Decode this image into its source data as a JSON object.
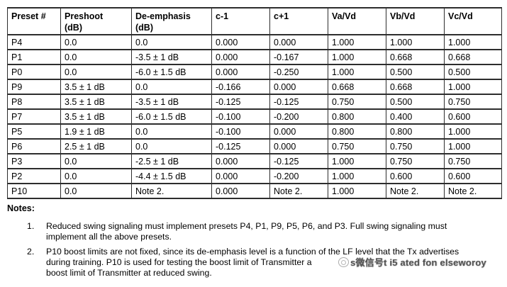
{
  "colors": {
    "background": "#ffffff",
    "border": "#2d2d2d",
    "text": "#000000",
    "watermark": "#3a3a3a"
  },
  "table": {
    "headers": [
      {
        "lines": [
          "Preset #"
        ]
      },
      {
        "lines": [
          "Preshoot",
          "(dB)"
        ]
      },
      {
        "lines": [
          "De-emphasis",
          "(dB)"
        ]
      },
      {
        "lines": [
          "c-1"
        ]
      },
      {
        "lines": [
          "c+1"
        ]
      },
      {
        "lines": [
          "Va/Vd"
        ]
      },
      {
        "lines": [
          "Vb/Vd"
        ]
      },
      {
        "lines": [
          "Vc/Vd"
        ]
      }
    ],
    "rows": [
      [
        "P4",
        "0.0",
        "0.0",
        "0.000",
        "0.000",
        "1.000",
        "1.000",
        "1.000"
      ],
      [
        "P1",
        "0.0",
        "-3.5 ± 1 dB",
        "0.000",
        "-0.167",
        "1.000",
        "0.668",
        "0.668"
      ],
      [
        "P0",
        "0.0",
        "-6.0 ± 1.5 dB",
        "0.000",
        "-0.250",
        "1.000",
        "0.500",
        "0.500"
      ],
      [
        "P9",
        "3.5 ± 1 dB",
        "0.0",
        "-0.166",
        "0.000",
        "0.668",
        "0.668",
        "1.000"
      ],
      [
        "P8",
        "3.5 ± 1 dB",
        "-3.5 ± 1 dB",
        "-0.125",
        "-0.125",
        "0.750",
        "0.500",
        "0.750"
      ],
      [
        "P7",
        "3.5 ± 1 dB",
        "-6.0 ± 1.5 dB",
        "-0.100",
        "-0.200",
        "0.800",
        "0.400",
        "0.600"
      ],
      [
        "P5",
        "1.9 ± 1 dB",
        "0.0",
        "-0.100",
        "0.000",
        "0.800",
        "0.800",
        "1.000"
      ],
      [
        "P6",
        "2.5 ± 1 dB",
        "0.0",
        "-0.125",
        "0.000",
        "0.750",
        "0.750",
        "1.000"
      ],
      [
        "P3",
        "0.0",
        "-2.5 ± 1 dB",
        "0.000",
        "-0.125",
        "1.000",
        "0.750",
        "0.750"
      ],
      [
        "P2",
        "0.0",
        "-4.4 ± 1.5 dB",
        "0.000",
        "-0.200",
        "1.000",
        "0.600",
        "0.600"
      ],
      [
        "P10",
        "0.0",
        "Note 2.",
        "0.000",
        "Note 2.",
        "1.000",
        "Note 2.",
        "Note 2."
      ]
    ]
  },
  "notes": {
    "title": "Notes:",
    "items": [
      {
        "number": "1.",
        "lines": [
          "Reduced swing signaling must implement presets P4, P1, P9, P5, P6, and P3. Full swing signaling must",
          "implement all the above presets."
        ]
      },
      {
        "number": "2.",
        "lines": [
          "P10 boost limits are not fixed, since its de-emphasis level is a function of the LF level that the Tx advertises",
          "during training. P10 is used for testing the boost limit of Transmitter a",
          "boost limit of Transmitter at reduced swing."
        ]
      }
    ]
  },
  "watermark": {
    "icon": "wechat-stamp-icon",
    "text": "s微信号t i5 ated fon elseworoy"
  }
}
